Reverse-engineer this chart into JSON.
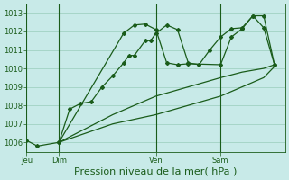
{
  "title": "Pression niveau de la mer( hPa )",
  "bg_color": "#c8eae8",
  "grid_color": "#99ccbb",
  "line_color": "#1a5c1a",
  "ylim": [
    1005.5,
    1013.5
  ],
  "yticks": [
    1006,
    1007,
    1008,
    1009,
    1010,
    1011,
    1012,
    1013
  ],
  "xlabel_fontsize": 8,
  "title_fontsize": 8,
  "day_labels": [
    "Jeu",
    "Dim",
    "Ven",
    "Sam"
  ],
  "day_positions": [
    0,
    3,
    12,
    18
  ],
  "xlim": [
    0,
    24
  ],
  "line1_x": [
    0,
    1,
    3,
    4,
    5,
    6,
    7,
    8,
    9,
    9.5,
    10,
    11,
    11.5,
    12,
    13,
    14,
    15,
    16,
    17,
    18,
    19,
    20,
    21,
    22,
    23
  ],
  "line1_y": [
    1006.1,
    1005.8,
    1006.0,
    1007.8,
    1008.1,
    1008.2,
    1009.0,
    1009.6,
    1010.3,
    1010.7,
    1010.7,
    1011.5,
    1011.5,
    1011.9,
    1012.35,
    1012.1,
    1010.3,
    1010.2,
    1011.0,
    1011.7,
    1012.15,
    1012.2,
    1012.85,
    1012.85,
    1010.2
  ],
  "line2_x": [
    3,
    9,
    10,
    11,
    12,
    13,
    14,
    15,
    18,
    19,
    20,
    21,
    22,
    23
  ],
  "line2_y": [
    1006.0,
    1011.9,
    1012.35,
    1012.4,
    1012.1,
    1010.3,
    1010.2,
    1010.25,
    1010.2,
    1011.7,
    1012.15,
    1012.85,
    1012.2,
    1010.2
  ],
  "line3_x": [
    3,
    8,
    12,
    15,
    18,
    20,
    22,
    23
  ],
  "line3_y": [
    1006.0,
    1007.5,
    1008.5,
    1009.0,
    1009.5,
    1009.8,
    1010.0,
    1010.2
  ],
  "line4_x": [
    3,
    8,
    12,
    15,
    18,
    20,
    22,
    23
  ],
  "line4_y": [
    1006.0,
    1007.0,
    1007.5,
    1008.0,
    1008.5,
    1009.0,
    1009.5,
    1010.1
  ]
}
